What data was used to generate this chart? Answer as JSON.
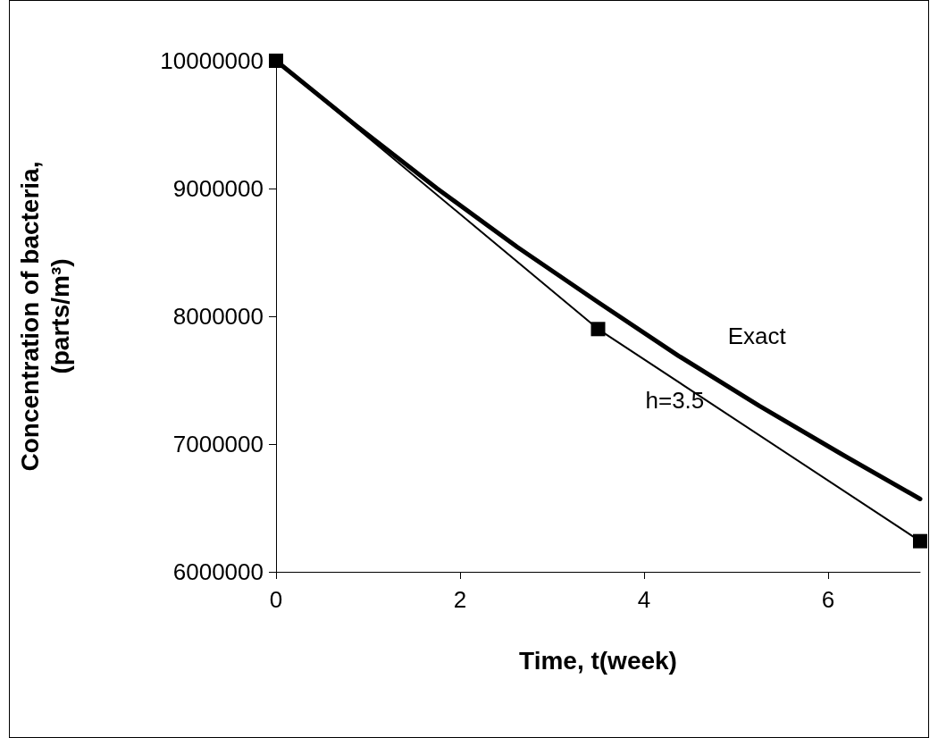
{
  "chart_data": {
    "type": "line",
    "xlabel": "Time, t(week)",
    "ylabel": "Concentration of bacteria, (parts/m³)",
    "xlim": [
      0,
      7
    ],
    "xticks": [
      0,
      2,
      4,
      6
    ],
    "ylim": [
      6000000,
      10000000
    ],
    "yticks": [
      6000000,
      7000000,
      8000000,
      9000000,
      10000000
    ],
    "grid": false,
    "legend": false,
    "series": [
      {
        "name": "Exact",
        "color": "#000000",
        "marker": "none",
        "line_style": "solid",
        "x": [
          0,
          0.875,
          1.75,
          2.625,
          3.5,
          4.375,
          5.25,
          6.125,
          7
        ],
        "values": [
          10000000,
          9490000,
          9000000,
          8540000,
          8110000,
          7690000,
          7300000,
          6930000,
          6570000
        ]
      },
      {
        "name": "h=3.5",
        "color": "#000000",
        "marker": "square",
        "line_style": "solid",
        "x": [
          0,
          3.5,
          7
        ],
        "values": [
          10000000,
          7900000,
          6240000
        ]
      }
    ]
  }
}
